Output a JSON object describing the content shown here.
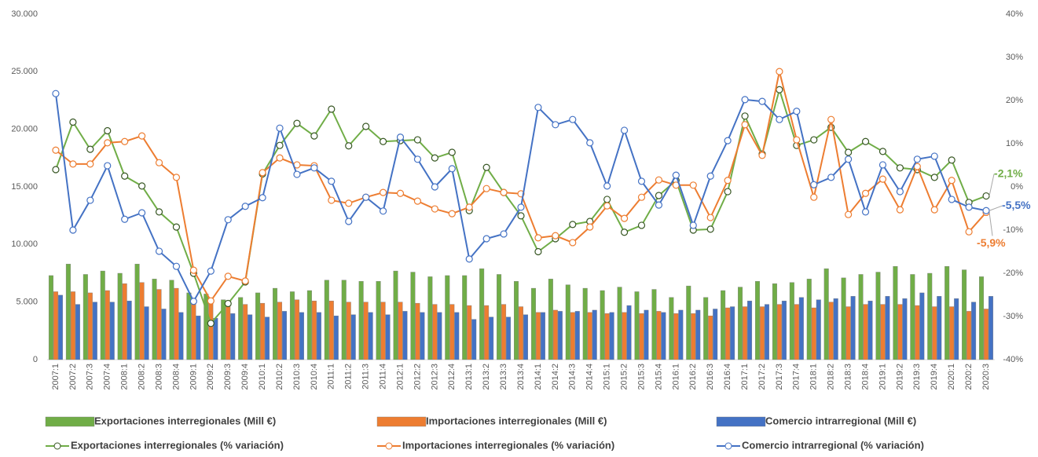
{
  "chart_data": {
    "type": "combo",
    "categories": [
      "2007:1",
      "2007:2",
      "2007:3",
      "2007:4",
      "2008:1",
      "2008:2",
      "2008:3",
      "2008:4",
      "2009:1",
      "2009:2",
      "2009:3",
      "2009:4",
      "2010:1",
      "2010:2",
      "2010:3",
      "2010:4",
      "2011:1",
      "2011:2",
      "2011:3",
      "2011:4",
      "2012:1",
      "2012:2",
      "2012:3",
      "2012:4",
      "2013:1",
      "2013:2",
      "2013:3",
      "2013:4",
      "2014:1",
      "2014:2",
      "2014:3",
      "2014:4",
      "2015:1",
      "2015:2",
      "2015:3",
      "2015:4",
      "2016:1",
      "2016:2",
      "2016:3",
      "2016:4",
      "2017:1",
      "2017:2",
      "2017:3",
      "2017:4",
      "2018:1",
      "2018:2",
      "2018:3",
      "2018:4",
      "2019:1",
      "2019:2",
      "2019:3",
      "2019:4",
      "2020:1",
      "2020:2",
      "2020:3"
    ],
    "ylim": [
      0,
      30000
    ],
    "yticks": [
      {
        "value": 0,
        "label": "0"
      },
      {
        "value": 5000,
        "label": "5.000"
      },
      {
        "value": 10000,
        "label": "10.000"
      },
      {
        "value": 15000,
        "label": "15.000"
      },
      {
        "value": 20000,
        "label": "20.000"
      },
      {
        "value": 25000,
        "label": "25.000"
      },
      {
        "value": 30000,
        "label": "30.000"
      }
    ],
    "y2lim": [
      -40,
      40
    ],
    "y2ticks": [
      {
        "value": -40,
        "label": "-40%"
      },
      {
        "value": -30,
        "label": "-30%"
      },
      {
        "value": -20,
        "label": "-20%"
      },
      {
        "value": -10,
        "label": "-10%"
      },
      {
        "value": 0,
        "label": "0%"
      },
      {
        "value": 10,
        "label": "10%"
      },
      {
        "value": 20,
        "label": "20%"
      },
      {
        "value": 30,
        "label": "30%"
      },
      {
        "value": 40,
        "label": "40%"
      }
    ],
    "series": [
      {
        "name": "Exportaciones interregionales (Mill €)",
        "type": "bar",
        "color": "#70ad47",
        "values": [
          7300,
          8300,
          7400,
          7700,
          7500,
          8300,
          7000,
          6900,
          5800,
          5700,
          5200,
          5400,
          5800,
          6200,
          5900,
          6000,
          6900,
          6900,
          6800,
          6800,
          7700,
          7600,
          7200,
          7300,
          7300,
          7900,
          7400,
          6800,
          6200,
          7000,
          6500,
          6200,
          6000,
          6300,
          5900,
          6100,
          5400,
          6400,
          5400,
          6000,
          6300,
          6800,
          6600,
          6700,
          7000,
          7900,
          7100,
          7400,
          7600,
          8100,
          7400,
          7500,
          8100,
          7800,
          7200
        ]
      },
      {
        "name": "Importaciones interregionales (Mill €)",
        "type": "bar",
        "color": "#ed7d31",
        "values": [
          5900,
          5900,
          5800,
          6000,
          6600,
          6700,
          6100,
          6200,
          5100,
          4900,
          4800,
          4800,
          4900,
          5000,
          5200,
          5100,
          5100,
          5000,
          5000,
          5000,
          5000,
          4900,
          4800,
          4800,
          4700,
          4700,
          4800,
          4600,
          4100,
          4300,
          4100,
          4100,
          4000,
          4100,
          4000,
          4200,
          4000,
          4000,
          3800,
          4500,
          4600,
          4600,
          4800,
          4800,
          4500,
          5000,
          4600,
          4800,
          4800,
          4800,
          4700,
          4600,
          4600,
          4200,
          4400
        ]
      },
      {
        "name": "Comercio intrarregional (Mill €)",
        "type": "bar",
        "color": "#4472c4",
        "values": [
          5600,
          4800,
          5000,
          5000,
          5100,
          4600,
          4400,
          4100,
          3800,
          3600,
          4000,
          3900,
          3700,
          4200,
          4100,
          4100,
          3800,
          3900,
          4100,
          3900,
          4200,
          4100,
          4100,
          4100,
          3500,
          3700,
          3700,
          3900,
          4100,
          4200,
          4200,
          4300,
          4100,
          4700,
          4300,
          4100,
          4300,
          4300,
          4400,
          4600,
          5100,
          4800,
          5100,
          5400,
          5200,
          5300,
          5500,
          5100,
          5500,
          5300,
          5800,
          5500,
          5300,
          5000,
          5500
        ]
      },
      {
        "name": "Exportaciones interregionales  (% variación)",
        "type": "line",
        "axis": "y2",
        "color": "#70ad47",
        "values": [
          4,
          15,
          8.7,
          13,
          2.5,
          0.2,
          -5.8,
          -9.3,
          -20,
          -31.6,
          -27,
          -22,
          3,
          9.6,
          14.7,
          11.8,
          18,
          9.5,
          14,
          10.5,
          10.7,
          10.9,
          6.7,
          8,
          -5.5,
          4.5,
          -1.3,
          -6.7,
          -15,
          -12,
          -8.7,
          -8,
          -2.9,
          -10.5,
          -8.9,
          -2,
          1.5,
          -10,
          -9.8,
          -1.1,
          16.4,
          7.6,
          22.5,
          9.6,
          10.9,
          13.8,
          8,
          10.5,
          8.2,
          4.4,
          4,
          2.2,
          6.2,
          -3.6,
          -2.1
        ],
        "value_labels": [
          null,
          null,
          null,
          null,
          null,
          null,
          null,
          null,
          null,
          null,
          null,
          null,
          null,
          null,
          null,
          null,
          null,
          null,
          null,
          null,
          null,
          null,
          null,
          null,
          null,
          null,
          null,
          null,
          null,
          null,
          null,
          null,
          null,
          null,
          null,
          null,
          null,
          null,
          null,
          null,
          null,
          null,
          null,
          null,
          null,
          null,
          null,
          null,
          null,
          null,
          null,
          null,
          null,
          null,
          "-2,1%"
        ]
      },
      {
        "name": "Importaciones interregionales (% variación)",
        "type": "line",
        "axis": "y2",
        "color": "#ed7d31",
        "values": [
          8.5,
          5.3,
          5.3,
          10.2,
          10.5,
          11.8,
          5.6,
          2.2,
          -19.3,
          -26.4,
          -20.7,
          -21.8,
          3.3,
          6.7,
          5.1,
          4.9,
          -3.1,
          -3.8,
          -2.4,
          -1.3,
          -1.5,
          -3.3,
          -5.1,
          -6.2,
          -4.7,
          -0.4,
          -1.3,
          -1.6,
          -11.8,
          -11.3,
          -12.9,
          -9.3,
          -4.4,
          -7.3,
          -2.4,
          1.6,
          0.4,
          0.4,
          -7.1,
          1.5,
          14.4,
          7.3,
          26.7,
          10.9,
          -2.4,
          15.6,
          -6.4,
          -1.5,
          1.8,
          -5.3,
          4.7,
          -5.3,
          1.5,
          -10.4,
          -5.9
        ],
        "value_labels": [
          null,
          null,
          null,
          null,
          null,
          null,
          null,
          null,
          null,
          null,
          null,
          null,
          null,
          null,
          null,
          null,
          null,
          null,
          null,
          null,
          null,
          null,
          null,
          null,
          null,
          null,
          null,
          null,
          null,
          null,
          null,
          null,
          null,
          null,
          null,
          null,
          null,
          null,
          null,
          null,
          null,
          null,
          null,
          null,
          null,
          null,
          null,
          null,
          null,
          null,
          null,
          null,
          null,
          null,
          "-5,9%"
        ]
      },
      {
        "name": "Comercio intrarregional (% variación)",
        "type": "line",
        "axis": "y2",
        "color": "#4472c4",
        "values": [
          21.6,
          -10,
          -3.1,
          4.9,
          -7.5,
          -6,
          -14.9,
          -18.4,
          -26.5,
          -19.5,
          -7.6,
          -4.5,
          -2.5,
          13.6,
          2.9,
          4.4,
          1.3,
          -8,
          -2.4,
          -5.6,
          11.5,
          6.4,
          0,
          4.2,
          -16.7,
          -12,
          -10.9,
          -4.7,
          18.4,
          14.4,
          15.6,
          10.2,
          0.2,
          13.1,
          1.3,
          -4.2,
          2.7,
          -8.9,
          2.5,
          10.7,
          20.2,
          19.8,
          15.6,
          17.5,
          0.5,
          2.2,
          6.4,
          -5.8,
          5.1,
          -1.1,
          6.4,
          7.1,
          -2.9,
          -4.7,
          -5.5
        ],
        "value_labels": [
          null,
          null,
          null,
          null,
          null,
          null,
          null,
          null,
          null,
          null,
          null,
          null,
          null,
          null,
          null,
          null,
          null,
          null,
          null,
          null,
          null,
          null,
          null,
          null,
          null,
          null,
          null,
          null,
          null,
          null,
          null,
          null,
          null,
          null,
          null,
          null,
          null,
          null,
          null,
          null,
          null,
          null,
          null,
          null,
          null,
          null,
          null,
          null,
          null,
          null,
          null,
          null,
          null,
          null,
          "-5,5%"
        ]
      }
    ],
    "legend": "bottom"
  }
}
